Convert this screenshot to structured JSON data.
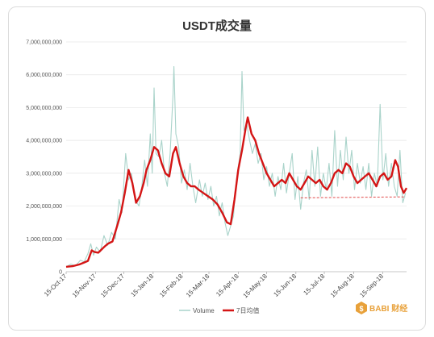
{
  "chart_data": {
    "type": "line",
    "title": "USDT成交量",
    "xlabel": "",
    "ylabel": "",
    "ylim": [
      0,
      7000000000
    ],
    "grid": true,
    "legend_position": "bottom-center",
    "y_ticks": [
      {
        "value": 0,
        "label": "0"
      },
      {
        "value": 1000000000,
        "label": "1,000,000,000"
      },
      {
        "value": 2000000000,
        "label": "2,000,000,000"
      },
      {
        "value": 3000000000,
        "label": "3,000,000,000"
      },
      {
        "value": 4000000000,
        "label": "4,000,000,000"
      },
      {
        "value": 5000000000,
        "label": "5,000,000,000"
      },
      {
        "value": 6000000000,
        "label": "6,000,000,000"
      },
      {
        "value": 7000000000,
        "label": "7,000,000,000"
      }
    ],
    "x_ticks": [
      "15-Oct-17",
      "15-Nov-17",
      "15-Dec-17",
      "15-Jan-18",
      "15-Feb-18",
      "15-Mar-18",
      "15-Apr-18",
      "15-May-18",
      "15-Jun-18",
      "15-Jul-18",
      "15-Aug-18",
      "15-Sep-18"
    ],
    "x_start": "2017-10-15",
    "x_end": "2018-10-10",
    "series": [
      {
        "name": "Volume",
        "color": "#a9d3ca",
        "points": [
          [
            "2017-10-15",
            150000000
          ],
          [
            "2017-10-20",
            230000000
          ],
          [
            "2017-10-25",
            180000000
          ],
          [
            "2017-10-30",
            350000000
          ],
          [
            "2017-11-03",
            300000000
          ],
          [
            "2017-11-07",
            550000000
          ],
          [
            "2017-11-10",
            850000000
          ],
          [
            "2017-11-13",
            500000000
          ],
          [
            "2017-11-16",
            750000000
          ],
          [
            "2017-11-20",
            600000000
          ],
          [
            "2017-11-24",
            1100000000
          ],
          [
            "2017-11-28",
            800000000
          ],
          [
            "2017-12-02",
            1200000000
          ],
          [
            "2017-12-06",
            1000000000
          ],
          [
            "2017-12-10",
            2200000000
          ],
          [
            "2017-12-13",
            1800000000
          ],
          [
            "2017-12-17",
            3600000000
          ],
          [
            "2017-12-20",
            2800000000
          ],
          [
            "2017-12-23",
            3000000000
          ],
          [
            "2017-12-27",
            2200000000
          ],
          [
            "2017-12-31",
            2000000000
          ],
          [
            "2018-01-03",
            2600000000
          ],
          [
            "2018-01-06",
            3400000000
          ],
          [
            "2018-01-09",
            2600000000
          ],
          [
            "2018-01-12",
            4200000000
          ],
          [
            "2018-01-14",
            3000000000
          ],
          [
            "2018-01-16",
            5600000000
          ],
          [
            "2018-01-18",
            3600000000
          ],
          [
            "2018-01-21",
            3500000000
          ],
          [
            "2018-01-24",
            4000000000
          ],
          [
            "2018-01-27",
            3000000000
          ],
          [
            "2018-01-30",
            2600000000
          ],
          [
            "2018-02-02",
            3600000000
          ],
          [
            "2018-02-05",
            5400000000
          ],
          [
            "2018-02-06",
            6250000000
          ],
          [
            "2018-02-08",
            4200000000
          ],
          [
            "2018-02-11",
            3800000000
          ],
          [
            "2018-02-14",
            2700000000
          ],
          [
            "2018-02-17",
            3100000000
          ],
          [
            "2018-02-20",
            2500000000
          ],
          [
            "2018-02-23",
            3300000000
          ],
          [
            "2018-02-26",
            2600000000
          ],
          [
            "2018-03-01",
            2100000000
          ],
          [
            "2018-03-05",
            2800000000
          ],
          [
            "2018-03-08",
            2300000000
          ],
          [
            "2018-03-11",
            2700000000
          ],
          [
            "2018-03-14",
            2200000000
          ],
          [
            "2018-03-17",
            2600000000
          ],
          [
            "2018-03-20",
            2000000000
          ],
          [
            "2018-03-23",
            2300000000
          ],
          [
            "2018-03-26",
            1700000000
          ],
          [
            "2018-03-29",
            2100000000
          ],
          [
            "2018-04-01",
            1500000000
          ],
          [
            "2018-04-04",
            1100000000
          ],
          [
            "2018-04-07",
            1400000000
          ],
          [
            "2018-04-10",
            1700000000
          ],
          [
            "2018-04-12",
            2500000000
          ],
          [
            "2018-04-14",
            3000000000
          ],
          [
            "2018-04-17",
            3600000000
          ],
          [
            "2018-04-19",
            6100000000
          ],
          [
            "2018-04-21",
            4300000000
          ],
          [
            "2018-04-24",
            4500000000
          ],
          [
            "2018-04-27",
            4000000000
          ],
          [
            "2018-04-30",
            3600000000
          ],
          [
            "2018-05-03",
            3900000000
          ],
          [
            "2018-05-06",
            3300000000
          ],
          [
            "2018-05-09",
            3600000000
          ],
          [
            "2018-05-12",
            2800000000
          ],
          [
            "2018-05-15",
            3200000000
          ],
          [
            "2018-05-18",
            2600000000
          ],
          [
            "2018-05-21",
            3000000000
          ],
          [
            "2018-05-24",
            2300000000
          ],
          [
            "2018-05-27",
            2900000000
          ],
          [
            "2018-05-30",
            2500000000
          ],
          [
            "2018-06-02",
            3300000000
          ],
          [
            "2018-06-05",
            2400000000
          ],
          [
            "2018-06-08",
            3000000000
          ],
          [
            "2018-06-11",
            3600000000
          ],
          [
            "2018-06-14",
            2200000000
          ],
          [
            "2018-06-17",
            2900000000
          ],
          [
            "2018-06-20",
            1900000000
          ],
          [
            "2018-06-23",
            2700000000
          ],
          [
            "2018-06-26",
            3100000000
          ],
          [
            "2018-06-29",
            2200000000
          ],
          [
            "2018-07-02",
            3700000000
          ],
          [
            "2018-07-05",
            2600000000
          ],
          [
            "2018-07-08",
            3800000000
          ],
          [
            "2018-07-11",
            2300000000
          ],
          [
            "2018-07-14",
            3000000000
          ],
          [
            "2018-07-17",
            2500000000
          ],
          [
            "2018-07-20",
            3300000000
          ],
          [
            "2018-07-23",
            2300000000
          ],
          [
            "2018-07-26",
            4300000000
          ],
          [
            "2018-07-29",
            2600000000
          ],
          [
            "2018-08-01",
            3700000000
          ],
          [
            "2018-08-04",
            2800000000
          ],
          [
            "2018-08-07",
            4100000000
          ],
          [
            "2018-08-10",
            3000000000
          ],
          [
            "2018-08-13",
            3700000000
          ],
          [
            "2018-08-16",
            2500000000
          ],
          [
            "2018-08-19",
            3300000000
          ],
          [
            "2018-08-22",
            2700000000
          ],
          [
            "2018-08-25",
            3200000000
          ],
          [
            "2018-08-28",
            2500000000
          ],
          [
            "2018-08-31",
            3300000000
          ],
          [
            "2018-09-03",
            2300000000
          ],
          [
            "2018-09-06",
            3000000000
          ],
          [
            "2018-09-09",
            2600000000
          ],
          [
            "2018-09-12",
            5100000000
          ],
          [
            "2018-09-15",
            2800000000
          ],
          [
            "2018-09-18",
            3600000000
          ],
          [
            "2018-09-21",
            2600000000
          ],
          [
            "2018-09-24",
            3300000000
          ],
          [
            "2018-09-27",
            2600000000
          ],
          [
            "2018-09-30",
            2300000000
          ],
          [
            "2018-10-03",
            3700000000
          ],
          [
            "2018-10-06",
            2100000000
          ],
          [
            "2018-10-09",
            2400000000
          ]
        ]
      },
      {
        "name": "7日均值",
        "color": "#d41515",
        "points": [
          [
            "2017-10-15",
            150000000
          ],
          [
            "2017-10-22",
            170000000
          ],
          [
            "2017-10-29",
            220000000
          ],
          [
            "2017-11-03",
            280000000
          ],
          [
            "2017-11-07",
            330000000
          ],
          [
            "2017-11-11",
            650000000
          ],
          [
            "2017-11-14",
            600000000
          ],
          [
            "2017-11-18",
            580000000
          ],
          [
            "2017-11-24",
            750000000
          ],
          [
            "2017-11-28",
            850000000
          ],
          [
            "2017-12-03",
            920000000
          ],
          [
            "2017-12-08",
            1400000000
          ],
          [
            "2017-12-12",
            1800000000
          ],
          [
            "2017-12-16",
            2400000000
          ],
          [
            "2017-12-20",
            3100000000
          ],
          [
            "2017-12-24",
            2700000000
          ],
          [
            "2017-12-28",
            2100000000
          ],
          [
            "2018-01-01",
            2300000000
          ],
          [
            "2018-01-05",
            2700000000
          ],
          [
            "2018-01-08",
            3100000000
          ],
          [
            "2018-01-12",
            3400000000
          ],
          [
            "2018-01-16",
            3800000000
          ],
          [
            "2018-01-20",
            3700000000
          ],
          [
            "2018-01-24",
            3300000000
          ],
          [
            "2018-01-28",
            3000000000
          ],
          [
            "2018-02-01",
            2900000000
          ],
          [
            "2018-02-05",
            3600000000
          ],
          [
            "2018-02-08",
            3800000000
          ],
          [
            "2018-02-12",
            3300000000
          ],
          [
            "2018-02-16",
            2900000000
          ],
          [
            "2018-02-20",
            2700000000
          ],
          [
            "2018-02-24",
            2600000000
          ],
          [
            "2018-02-28",
            2600000000
          ],
          [
            "2018-03-04",
            2500000000
          ],
          [
            "2018-03-09",
            2400000000
          ],
          [
            "2018-03-14",
            2300000000
          ],
          [
            "2018-03-19",
            2200000000
          ],
          [
            "2018-03-24",
            2050000000
          ],
          [
            "2018-03-29",
            1800000000
          ],
          [
            "2018-04-03",
            1500000000
          ],
          [
            "2018-04-07",
            1450000000
          ],
          [
            "2018-04-11",
            2200000000
          ],
          [
            "2018-04-15",
            3100000000
          ],
          [
            "2018-04-19",
            3700000000
          ],
          [
            "2018-04-23",
            4400000000
          ],
          [
            "2018-04-25",
            4700000000
          ],
          [
            "2018-04-29",
            4200000000
          ],
          [
            "2018-05-03",
            4000000000
          ],
          [
            "2018-05-07",
            3600000000
          ],
          [
            "2018-05-11",
            3300000000
          ],
          [
            "2018-05-15",
            3000000000
          ],
          [
            "2018-05-19",
            2800000000
          ],
          [
            "2018-05-23",
            2600000000
          ],
          [
            "2018-05-27",
            2700000000
          ],
          [
            "2018-05-31",
            2800000000
          ],
          [
            "2018-06-04",
            2700000000
          ],
          [
            "2018-06-08",
            3000000000
          ],
          [
            "2018-06-12",
            2800000000
          ],
          [
            "2018-06-16",
            2600000000
          ],
          [
            "2018-06-20",
            2500000000
          ],
          [
            "2018-06-24",
            2700000000
          ],
          [
            "2018-06-28",
            2900000000
          ],
          [
            "2018-07-02",
            2800000000
          ],
          [
            "2018-07-06",
            2700000000
          ],
          [
            "2018-07-10",
            2800000000
          ],
          [
            "2018-07-14",
            2600000000
          ],
          [
            "2018-07-18",
            2500000000
          ],
          [
            "2018-07-22",
            2700000000
          ],
          [
            "2018-07-26",
            3000000000
          ],
          [
            "2018-07-30",
            3100000000
          ],
          [
            "2018-08-03",
            3000000000
          ],
          [
            "2018-08-07",
            3300000000
          ],
          [
            "2018-08-11",
            3200000000
          ],
          [
            "2018-08-15",
            2900000000
          ],
          [
            "2018-08-19",
            2700000000
          ],
          [
            "2018-08-23",
            2800000000
          ],
          [
            "2018-08-27",
            2900000000
          ],
          [
            "2018-08-31",
            3000000000
          ],
          [
            "2018-09-04",
            2800000000
          ],
          [
            "2018-09-08",
            2600000000
          ],
          [
            "2018-09-12",
            2900000000
          ],
          [
            "2018-09-16",
            3000000000
          ],
          [
            "2018-09-20",
            2800000000
          ],
          [
            "2018-09-24",
            2900000000
          ],
          [
            "2018-09-28",
            3400000000
          ],
          [
            "2018-10-01",
            3200000000
          ],
          [
            "2018-10-04",
            2600000000
          ],
          [
            "2018-10-07",
            2400000000
          ],
          [
            "2018-10-10",
            2550000000
          ]
        ]
      }
    ],
    "reference_line": {
      "style": "dashed",
      "color": "#e04848",
      "x_from": "2018-06-20",
      "x_to": "2018-10-09",
      "y_from": 2250000000,
      "y_to": 2280000000
    },
    "watermark_text": "BABI 财经"
  }
}
